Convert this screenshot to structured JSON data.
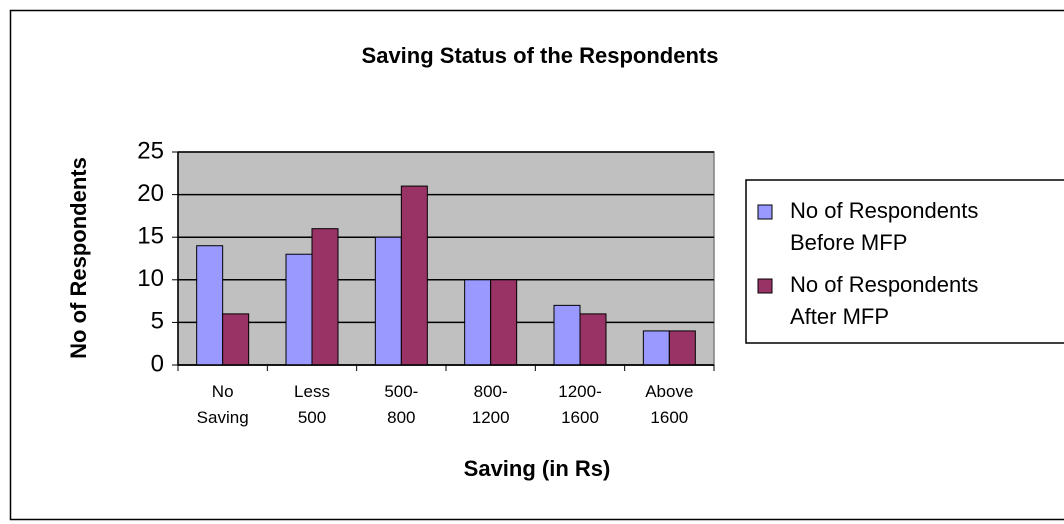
{
  "chart_data": {
    "type": "bar",
    "title": "Saving Status of the Respondents",
    "x_label": "Saving (in Rs)",
    "y_label": "No of Respondents",
    "categories": [
      "No\nSaving",
      "Less\n500",
      "500-\n800",
      "800-\n1200",
      "1200-\n1600",
      "Above\n1600"
    ],
    "series": [
      {
        "name": "No of Respondents\nBefore MFP",
        "color": "#9999ff",
        "values": [
          14,
          13,
          15,
          10,
          7,
          4
        ]
      },
      {
        "name": "No of Respondents\nAfter MFP",
        "color": "#993366",
        "values": [
          6,
          16,
          21,
          10,
          6,
          4
        ]
      }
    ],
    "ylim": [
      0,
      25
    ],
    "yticks": [
      0,
      5,
      10,
      15,
      20,
      25
    ],
    "grid": true,
    "legend": "right"
  }
}
